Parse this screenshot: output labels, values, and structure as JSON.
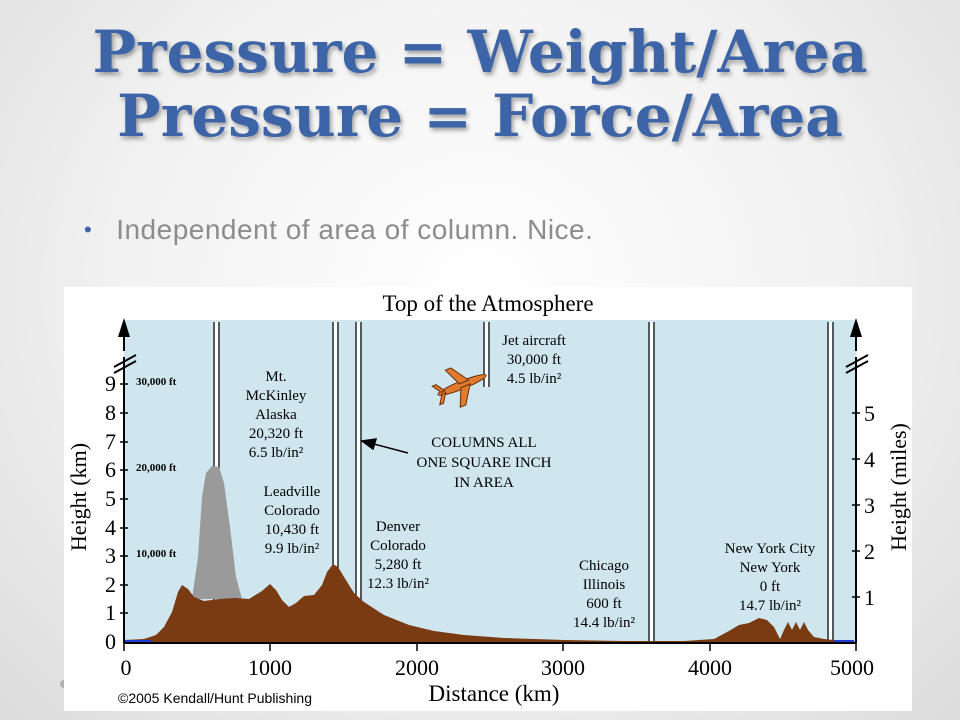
{
  "slide": {
    "title_line1": "Pressure = Weight/Area",
    "title_line2": "Pressure = Force/Area",
    "bullet": "Independent of area of column. Nice."
  },
  "figure": {
    "top_label": "Top of the Atmosphere",
    "y_left_label": "Height (km)",
    "y_right_label": "Height (miles)",
    "x_label": "Distance (km)",
    "x_ticks": [
      "0",
      "1000",
      "2000",
      "3000",
      "4000",
      "5000"
    ],
    "km_ticks": [
      "0",
      "1",
      "2",
      "3",
      "4",
      "5",
      "6",
      "7",
      "8",
      "9"
    ],
    "mile_ticks": [
      "1",
      "2",
      "3",
      "4",
      "5"
    ],
    "ft_marks": [
      "10,000 ft",
      "20,000 ft",
      "30,000 ft"
    ],
    "copyright": "©2005 Kendall/Hunt Publishing",
    "columns_note": [
      "COLUMNS ALL",
      "ONE SQUARE INCH",
      "IN AREA"
    ],
    "locations": {
      "mckinley": [
        "Mt.",
        "McKinley",
        "Alaska",
        "20,320 ft",
        "6.5 lb/in²"
      ],
      "leadville": [
        "Leadville",
        "Colorado",
        "10,430 ft",
        "9.9 lb/in²"
      ],
      "denver": [
        "Denver",
        "Colorado",
        "5,280 ft",
        "12.3 lb/in²"
      ],
      "jet": [
        "Jet aircraft",
        "30,000 ft",
        "4.5 lb/in²"
      ],
      "chicago": [
        "Chicago",
        "Illinois",
        "600 ft",
        "14.4 lb/in²"
      ],
      "newyork": [
        "New York City",
        "New York",
        "0 ft",
        "14.7 lb/in²"
      ]
    },
    "colors": {
      "sky": "#cfe6ee",
      "terrain": "#7a3a12",
      "mountain": "#9a9a9a",
      "plane": "#e07a2e",
      "ocean": "#1d3fd8"
    }
  }
}
